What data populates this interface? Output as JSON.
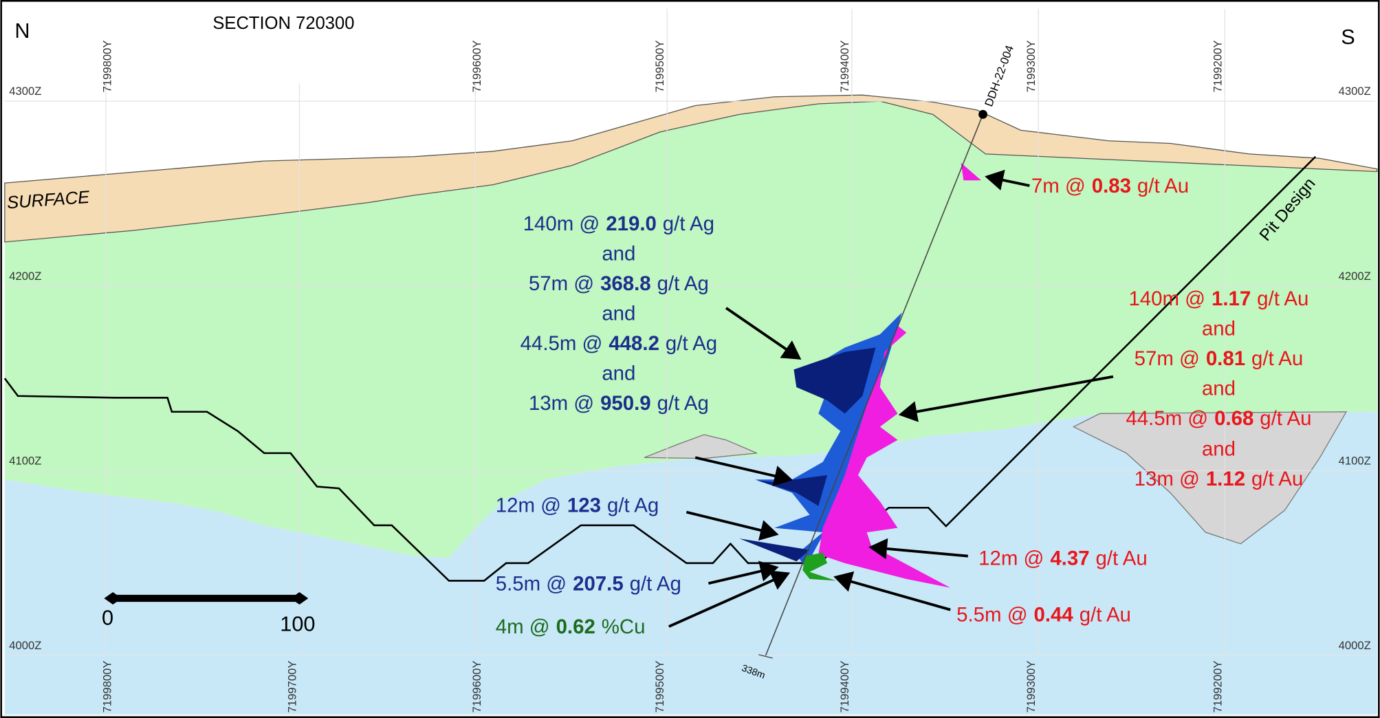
{
  "header": {
    "north": "N",
    "south": "S",
    "title": "SECTION 720300"
  },
  "grid": {
    "northings_top": [
      "7199800Y",
      "7199600Y",
      "7199500Y",
      "7199400Y",
      "7199300Y",
      "7199200Y"
    ],
    "northings_bottom": [
      "7199800Y",
      "7199700Y",
      "7199600Y",
      "7199500Y",
      "7199400Y",
      "7199300Y",
      "7199200Y"
    ],
    "elevations_left": [
      "4300Z",
      "4200Z",
      "4100Z",
      "4000Z"
    ],
    "elevations_right": [
      "4300Z",
      "4200Z",
      "4100Z",
      "4000Z"
    ]
  },
  "labels": {
    "surface": "SURFACE",
    "pit_design": "Pit Design",
    "drill_hole": "DDH-22-004",
    "hole_depth": "338m"
  },
  "scale_bar": {
    "start": "0",
    "end": "100"
  },
  "annotations": {
    "silver_main": [
      {
        "length": "140m @",
        "grade": "219.0",
        "unit": "g/t Ag"
      },
      {
        "text": "and"
      },
      {
        "length": "57m @",
        "grade": "368.8",
        "unit": "g/t Ag"
      },
      {
        "text": "and"
      },
      {
        "length": "44.5m @",
        "grade": "448.2",
        "unit": "g/t Ag"
      },
      {
        "text": "and"
      },
      {
        "length": "13m @",
        "grade": "950.9",
        "unit": "g/t Ag"
      }
    ],
    "gold_main": [
      {
        "length": "140m @",
        "grade": "1.17",
        "unit": "g/t Au"
      },
      {
        "text": "and"
      },
      {
        "length": "57m @",
        "grade": "0.81",
        "unit": "g/t Au"
      },
      {
        "text": "and"
      },
      {
        "length": "44.5m @",
        "grade": "0.68",
        "unit": "g/t Au"
      },
      {
        "text": "and"
      },
      {
        "length": "13m @",
        "grade": "1.12",
        "unit": "g/t Au"
      }
    ],
    "gold_upper": {
      "length": "7m @",
      "grade": "0.83",
      "unit": "g/t Au"
    },
    "silver_lower_1": {
      "length": "12m @",
      "grade": "123",
      "unit": "g/t Ag"
    },
    "silver_lower_2": {
      "length": "5.5m @",
      "grade": "207.5",
      "unit": "g/t Ag"
    },
    "copper": {
      "length": "4m @",
      "grade": "0.62",
      "unit": "%Cu"
    },
    "gold_lower_1": {
      "length": "12m @",
      "grade": "4.37",
      "unit": "g/t Au"
    },
    "gold_lower_2": {
      "length": "5.5m @",
      "grade": "0.44",
      "unit": "g/t Au"
    }
  }
}
